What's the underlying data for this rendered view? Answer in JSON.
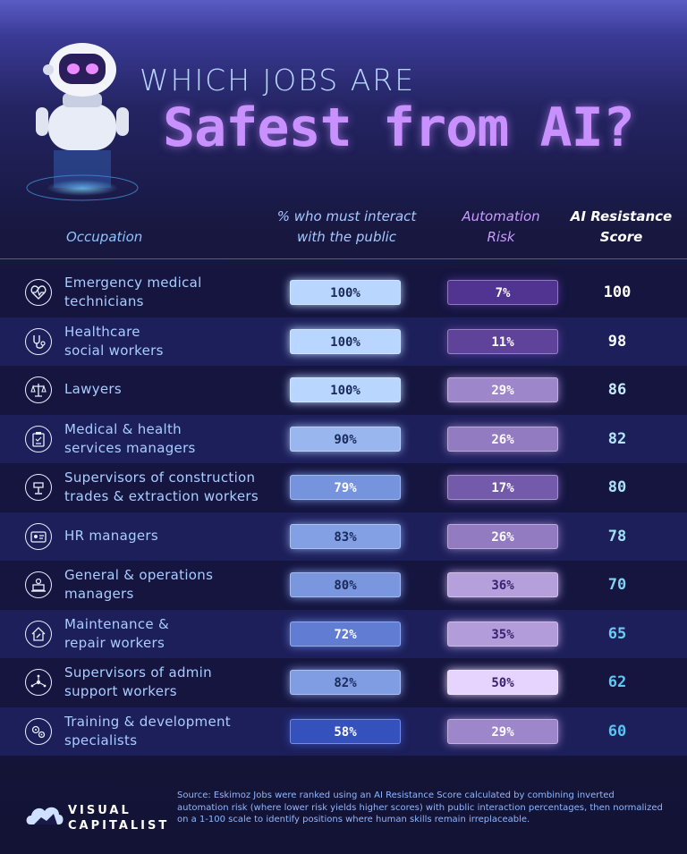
{
  "title_line1": "WHICH JOBS ARE",
  "title_line2": "Safest from AI?",
  "headers": {
    "occupation": "Occupation",
    "public_line1": "% who must interact",
    "public_line2": "with the public",
    "automation_line1": "Automation",
    "automation_line2": "Risk",
    "score_line1": "AI Resistance",
    "score_line2": "Score"
  },
  "chart_data": {
    "type": "table",
    "columns": [
      "Occupation",
      "% who must interact with the public",
      "Automation Risk",
      "AI Resistance Score"
    ],
    "rows": [
      {
        "line1": "Emergency medical",
        "line2": "technicians",
        "icon": "heart-pulse-icon",
        "public": "100%",
        "public_val": 100,
        "auto": "7%",
        "auto_val": 7,
        "score": "100",
        "score_val": 100
      },
      {
        "line1": "Healthcare",
        "line2": "social workers",
        "icon": "stethoscope-icon",
        "public": "100%",
        "public_val": 100,
        "auto": "11%",
        "auto_val": 11,
        "score": "98",
        "score_val": 98
      },
      {
        "line1": "Lawyers",
        "line2": "",
        "icon": "scales-icon",
        "public": "100%",
        "public_val": 100,
        "auto": "29%",
        "auto_val": 29,
        "score": "86",
        "score_val": 86
      },
      {
        "line1": "Medical & health",
        "line2": "services managers",
        "icon": "clipboard-icon",
        "public": "90%",
        "public_val": 90,
        "auto": "26%",
        "auto_val": 26,
        "score": "82",
        "score_val": 82
      },
      {
        "line1": "Supervisors of construction",
        "line2": "trades & extraction workers",
        "icon": "drill-icon",
        "public": "79%",
        "public_val": 79,
        "auto": "17%",
        "auto_val": 17,
        "score": "80",
        "score_val": 80
      },
      {
        "line1": "HR managers",
        "line2": "",
        "icon": "id-card-icon",
        "public": "83%",
        "public_val": 83,
        "auto": "26%",
        "auto_val": 26,
        "score": "78",
        "score_val": 78
      },
      {
        "line1": "General & operations",
        "line2": "managers",
        "icon": "laptop-user-icon",
        "public": "80%",
        "public_val": 80,
        "auto": "36%",
        "auto_val": 36,
        "score": "70",
        "score_val": 70
      },
      {
        "line1": "Maintenance &",
        "line2": "repair workers",
        "icon": "house-wrench-icon",
        "public": "72%",
        "public_val": 72,
        "auto": "35%",
        "auto_val": 35,
        "score": "65",
        "score_val": 65
      },
      {
        "line1": "Supervisors of admin",
        "line2": "support workers",
        "icon": "network-icon",
        "public": "82%",
        "public_val": 82,
        "auto": "50%",
        "auto_val": 50,
        "score": "62",
        "score_val": 62
      },
      {
        "line1": "Training & development",
        "line2": "specialists",
        "icon": "gears-icon",
        "public": "58%",
        "public_val": 58,
        "auto": "29%",
        "auto_val": 29,
        "score": "60",
        "score_val": 60
      }
    ]
  },
  "colors": {
    "public_high": "#b8d6ff",
    "public_low": "#2b47b8",
    "auto_low": "#4a2d8c",
    "auto_high": "#e6d4ff",
    "score_high": "#ffffff",
    "score_low": "#55c6f0"
  },
  "footer": {
    "logo_line1": "VISUAL",
    "logo_line2": "CAPITALIST",
    "source": "Source: Eskimoz Jobs were ranked using an AI Resistance Score calculated by combining inverted automation risk (where lower risk yields higher scores) with public interaction percentages, then normalized on a 1-100 scale to identify positions where human skills remain irreplaceable."
  }
}
